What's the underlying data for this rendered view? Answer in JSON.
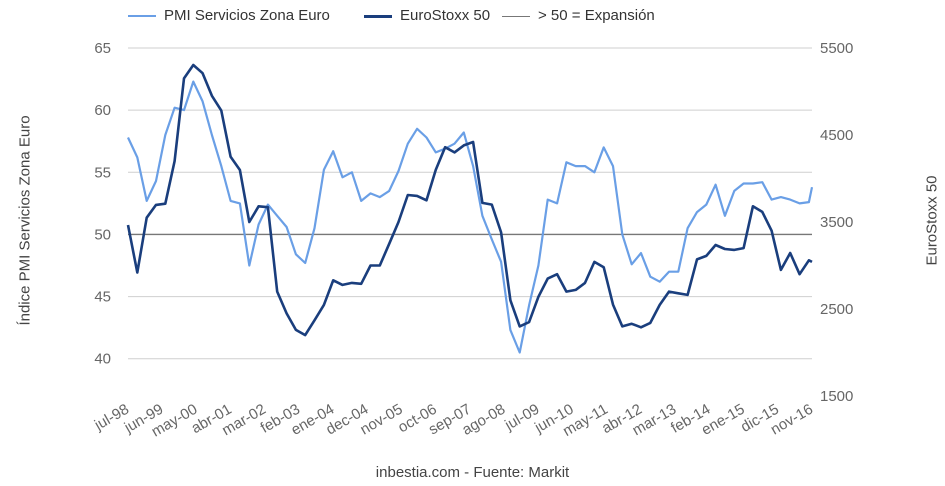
{
  "chart_data": {
    "type": "line",
    "title": "",
    "source": "inbestia.com - Fuente: Markit",
    "y_left_label": "Índice PMI Servicios Zona Euro",
    "y_right_label": "EuroStoxx 50",
    "y_left_range": [
      37,
      65
    ],
    "y_left_ticks": [
      "40",
      "45",
      "50",
      "55",
      "60",
      "65"
    ],
    "y_right_range": [
      1500,
      5500
    ],
    "y_right_ticks": [
      "1500",
      "2500",
      "3500",
      "4500",
      "5500"
    ],
    "x_range": [
      "1998-07",
      "2016-11"
    ],
    "x_ticks": [
      {
        "date": "1998-07",
        "label": "jul-98"
      },
      {
        "date": "1999-06",
        "label": "jun-99"
      },
      {
        "date": "2000-05",
        "label": "may-00"
      },
      {
        "date": "2001-04",
        "label": "abr-01"
      },
      {
        "date": "2002-03",
        "label": "mar-02"
      },
      {
        "date": "2003-02",
        "label": "feb-03"
      },
      {
        "date": "2004-01",
        "label": "ene-04"
      },
      {
        "date": "2004-12",
        "label": "dec-04"
      },
      {
        "date": "2005-11",
        "label": "nov-05"
      },
      {
        "date": "2006-10",
        "label": "oct-06"
      },
      {
        "date": "2007-09",
        "label": "sep-07"
      },
      {
        "date": "2008-08",
        "label": "ago-08"
      },
      {
        "date": "2009-07",
        "label": "jul-09"
      },
      {
        "date": "2010-06",
        "label": "jun-10"
      },
      {
        "date": "2011-05",
        "label": "may-11"
      },
      {
        "date": "2012-04",
        "label": "abr-12"
      },
      {
        "date": "2013-03",
        "label": "mar-13"
      },
      {
        "date": "2014-02",
        "label": "feb-14"
      },
      {
        "date": "2015-01",
        "label": "ene-15"
      },
      {
        "date": "2015-12",
        "label": "dic-15"
      },
      {
        "date": "2016-11",
        "label": "nov-16"
      }
    ],
    "grid": true,
    "legend_position": "top",
    "dates": [
      "1998-07",
      "1998-10",
      "1999-01",
      "1999-04",
      "1999-07",
      "1999-10",
      "2000-01",
      "2000-04",
      "2000-07",
      "2000-10",
      "2001-01",
      "2001-04",
      "2001-07",
      "2001-10",
      "2002-01",
      "2002-04",
      "2002-07",
      "2002-10",
      "2003-01",
      "2003-04",
      "2003-07",
      "2003-10",
      "2004-01",
      "2004-04",
      "2004-07",
      "2004-10",
      "2005-01",
      "2005-04",
      "2005-07",
      "2005-10",
      "2006-01",
      "2006-04",
      "2006-07",
      "2006-10",
      "2007-01",
      "2007-04",
      "2007-07",
      "2007-10",
      "2008-01",
      "2008-04",
      "2008-07",
      "2008-10",
      "2009-01",
      "2009-04",
      "2009-07",
      "2009-10",
      "2010-01",
      "2010-04",
      "2010-07",
      "2010-10",
      "2011-01",
      "2011-04",
      "2011-07",
      "2011-10",
      "2012-01",
      "2012-04",
      "2012-07",
      "2012-10",
      "2013-01",
      "2013-04",
      "2013-07",
      "2013-10",
      "2014-01",
      "2014-04",
      "2014-07",
      "2014-10",
      "2015-01",
      "2015-04",
      "2015-07",
      "2015-10",
      "2016-01",
      "2016-04",
      "2016-07",
      "2016-10",
      "2016-11"
    ],
    "series": [
      {
        "name": "PMI Servicios Zona Euro",
        "axis": "left",
        "color": "#6a9fe6",
        "values": [
          57.8,
          56.2,
          52.7,
          54.3,
          58.0,
          60.2,
          60.0,
          62.3,
          60.7,
          58.0,
          55.5,
          52.7,
          52.5,
          47.5,
          50.8,
          52.4,
          51.5,
          50.6,
          48.4,
          47.7,
          50.5,
          55.2,
          56.7,
          54.6,
          55.0,
          52.7,
          53.3,
          53.0,
          53.5,
          55.1,
          57.3,
          58.5,
          57.8,
          56.6,
          56.9,
          57.3,
          58.2,
          55.5,
          51.5,
          49.6,
          47.8,
          42.3,
          40.5,
          44.3,
          47.5,
          52.8,
          52.5,
          55.8,
          55.5,
          55.5,
          55.0,
          57.0,
          55.5,
          50.0,
          47.6,
          48.5,
          46.6,
          46.2,
          47.0,
          47.0,
          50.5,
          51.8,
          52.4,
          54.0,
          51.5,
          53.5,
          54.1,
          54.1,
          54.2,
          52.8,
          53.0,
          52.8,
          52.5,
          52.6,
          53.8
        ]
      },
      {
        "name": "EuroStoxx 50",
        "axis": "right",
        "color": "#1a3e7d",
        "values": [
          3466,
          2920,
          3550,
          3696,
          3710,
          4200,
          5150,
          5305,
          5210,
          4950,
          4780,
          4250,
          4098,
          3500,
          3680,
          3670,
          2700,
          2450,
          2260,
          2200,
          2370,
          2547,
          2830,
          2777,
          2800,
          2790,
          3000,
          3000,
          3250,
          3500,
          3810,
          3800,
          3750,
          4100,
          4360,
          4300,
          4380,
          4420,
          3720,
          3700,
          3380,
          2600,
          2300,
          2350,
          2640,
          2850,
          2900,
          2700,
          2720,
          2800,
          3041,
          2980,
          2550,
          2300,
          2330,
          2290,
          2340,
          2547,
          2700,
          2680,
          2662,
          3070,
          3110,
          3236,
          3190,
          3179,
          3200,
          3680,
          3616,
          3400,
          2950,
          3144,
          2900,
          3060,
          3041
        ]
      }
    ],
    "reference_line": {
      "name": "> 50 = Expansión",
      "axis": "left",
      "value": 50,
      "color": "#777777"
    }
  }
}
